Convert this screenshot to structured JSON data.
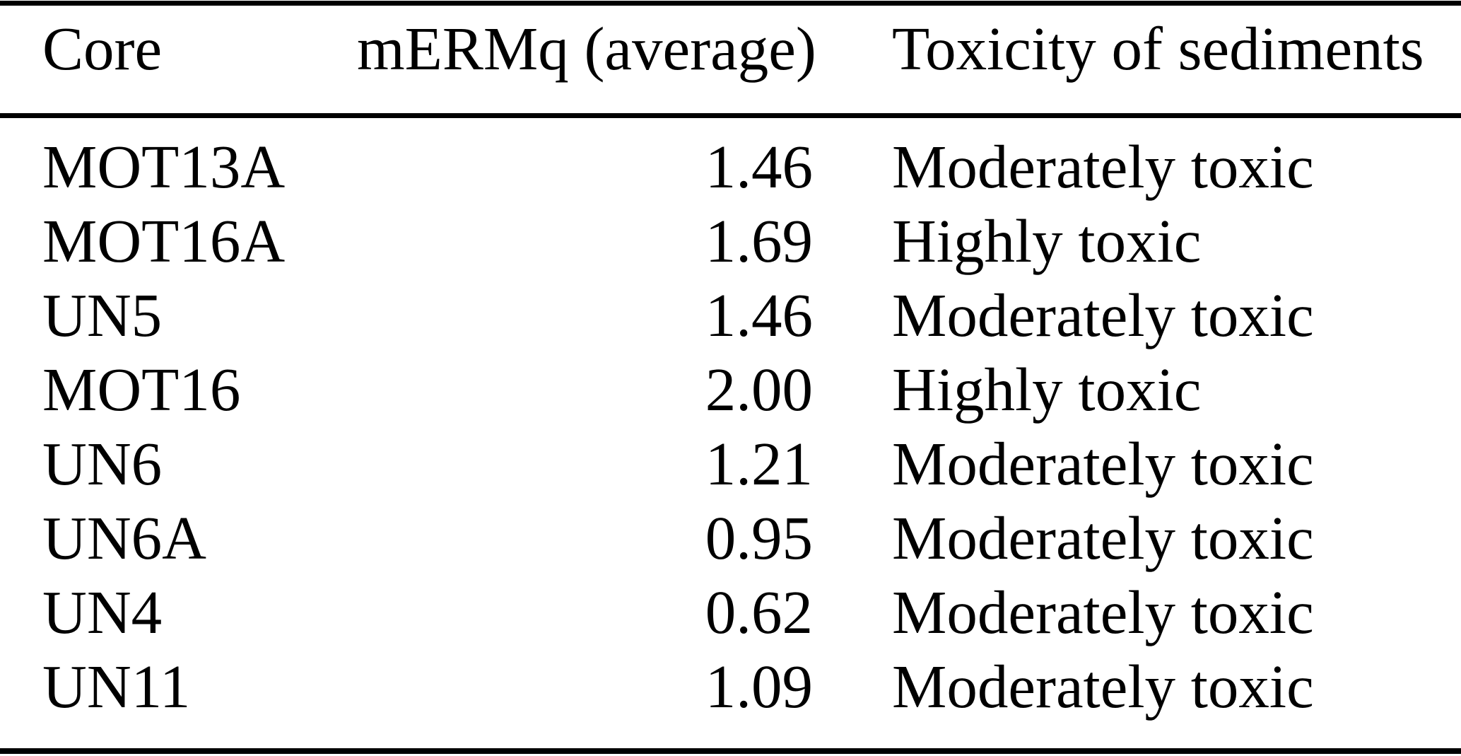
{
  "table": {
    "columns": [
      "Core",
      "mERMq (average)",
      "Toxicity of sediments"
    ],
    "rows": [
      {
        "core": "MOT13A",
        "mermq": "1.46",
        "toxicity": "Moderately toxic"
      },
      {
        "core": "MOT16A",
        "mermq": "1.69",
        "toxicity": "Highly toxic"
      },
      {
        "core": "UN5",
        "mermq": "1.46",
        "toxicity": "Moderately toxic"
      },
      {
        "core": "MOT16",
        "mermq": "2.00",
        "toxicity": "Highly toxic"
      },
      {
        "core": "UN6",
        "mermq": "1.21",
        "toxicity": "Moderately toxic"
      },
      {
        "core": "UN6A",
        "mermq": "0.95",
        "toxicity": "Moderately toxic"
      },
      {
        "core": "UN4",
        "mermq": "0.62",
        "toxicity": "Moderately toxic"
      },
      {
        "core": "UN11",
        "mermq": "1.09",
        "toxicity": "Moderately toxic"
      }
    ],
    "colors": {
      "text": "#000000",
      "background": "#ffffff",
      "rule": "#000000"
    }
  }
}
